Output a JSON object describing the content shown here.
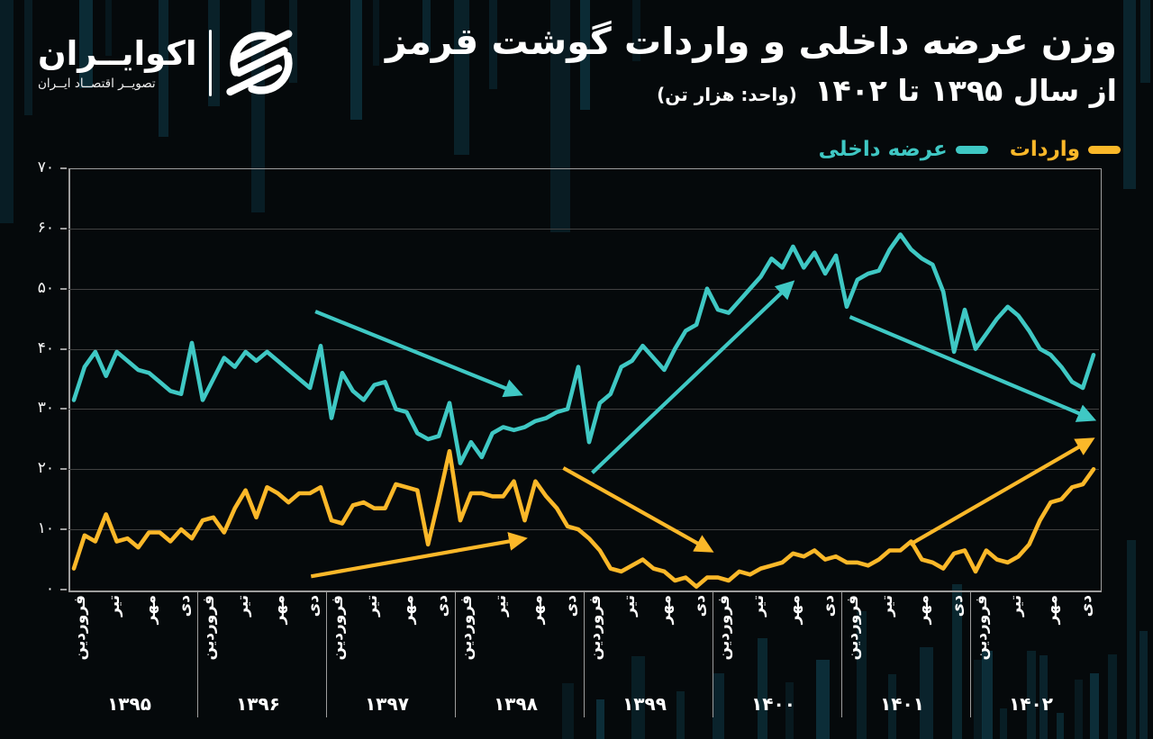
{
  "header": {
    "logo": {
      "brand": "اکوایــران",
      "tagline": "تصویــر اقتصــاد ایــران"
    },
    "title_line1": "وزن عرضه داخلی و واردات گوشت قرمز",
    "title_line2_main": "از سال ۱۳۹۵ تا ۱۴۰۲",
    "title_line2_unit": "(واحد: هزار تن)"
  },
  "legend": [
    {
      "label": "واردات",
      "color": "#fbb829"
    },
    {
      "label": "عرضه داخلی",
      "color": "#3fc8c4"
    }
  ],
  "chart_data": {
    "type": "line",
    "title": "وزن عرضه داخلی و واردات گوشت قرمز از سال ۱۳۹۵ تا ۱۴۰۲",
    "unit": "هزار تن",
    "ylim": [
      0,
      70
    ],
    "y_ticks": [
      0,
      10,
      20,
      30,
      40,
      50,
      60,
      70
    ],
    "y_tick_labels": [
      "۰",
      "۱۰",
      "۲۰",
      "۳۰",
      "۴۰",
      "۵۰",
      "۶۰",
      "۷۰"
    ],
    "x_years": [
      "۱۳۹۵",
      "۱۳۹۶",
      "۱۳۹۷",
      "۱۳۹۸",
      "۱۳۹۹",
      "۱۴۰۰",
      "۱۴۰۱",
      "۱۴۰۲"
    ],
    "x_month_labels": [
      "فروردین",
      "تیر",
      "مهر",
      "دی"
    ],
    "months_per_year": 12,
    "grid": "horizontal",
    "legend_position": "top-right",
    "series": [
      {
        "name": "عرضه داخلی",
        "color": "#3fc8c4",
        "values": [
          31.5,
          37,
          39.5,
          35.5,
          39.5,
          38,
          36.5,
          36,
          34.5,
          33,
          32.5,
          41,
          31.5,
          35,
          38.5,
          37,
          39.5,
          38,
          39.5,
          38,
          36.5,
          35,
          33.5,
          40.5,
          28.5,
          36,
          33,
          31.5,
          34,
          34.5,
          30,
          29.5,
          26,
          25,
          25.5,
          31,
          21,
          24.5,
          22,
          26,
          27,
          26.5,
          27,
          28,
          28.5,
          29.5,
          30,
          37,
          24.5,
          31,
          32.5,
          37,
          38,
          40.5,
          38.5,
          36.5,
          40,
          43,
          44,
          50,
          46.5,
          46,
          48,
          50,
          52,
          55,
          53.5,
          57,
          53.5,
          56,
          52.5,
          55.5,
          47,
          51.5,
          52.5,
          53,
          56.5,
          59,
          56.5,
          55,
          54,
          49.5,
          39.5,
          46.5,
          40,
          42.5,
          45,
          47,
          45.5,
          43,
          40,
          39,
          37,
          34.5,
          33.5,
          39
        ]
      },
      {
        "name": "واردات",
        "color": "#fbb829",
        "values": [
          3.5,
          9,
          8,
          12.5,
          8,
          8.5,
          7,
          9.5,
          9.5,
          8,
          10,
          8.5,
          11.5,
          12,
          9.5,
          13.5,
          16.5,
          12,
          17,
          16,
          14.5,
          16,
          16,
          17,
          11.5,
          11,
          14,
          14.5,
          13.5,
          13.5,
          17.5,
          17,
          16.5,
          7.5,
          15,
          23,
          11.5,
          16,
          16,
          15.5,
          15.5,
          18,
          11.5,
          18,
          15.5,
          13.5,
          10.5,
          10,
          8.5,
          6.5,
          3.5,
          3,
          4,
          5,
          3.5,
          3,
          1.5,
          2,
          0.5,
          2,
          2,
          1.5,
          3,
          2.5,
          3.5,
          4,
          4.5,
          6,
          5.5,
          6.5,
          5,
          5.5,
          4.5,
          4.5,
          4,
          5,
          6.5,
          6.5,
          8,
          5,
          4.5,
          3.5,
          6,
          6.5,
          3,
          6.5,
          5,
          4.5,
          5.5,
          7.5,
          11.5,
          14.5,
          15,
          17,
          17.5,
          20
        ]
      }
    ],
    "arrows": [
      {
        "color": "#3fc8c4",
        "from_month": 23.0,
        "from_value": 46.2,
        "to_month": 41.9,
        "to_value": 32.6
      },
      {
        "color": "#3fc8c4",
        "from_month": 48.8,
        "from_value": 19.4,
        "to_month": 67.3,
        "to_value": 50.8
      },
      {
        "color": "#3fc8c4",
        "from_month": 72.8,
        "from_value": 45.3,
        "to_month": 95.3,
        "to_value": 28.4
      },
      {
        "color": "#fbb829",
        "from_month": 22.6,
        "from_value": 2.2,
        "to_month": 42.3,
        "to_value": 8.4
      },
      {
        "color": "#fbb829",
        "from_month": 46.1,
        "from_value": 20.2,
        "to_month": 59.7,
        "to_value": 6.6
      },
      {
        "color": "#fbb829",
        "from_month": 78.4,
        "from_value": 7.5,
        "to_month": 95.2,
        "to_value": 24.8
      }
    ]
  }
}
